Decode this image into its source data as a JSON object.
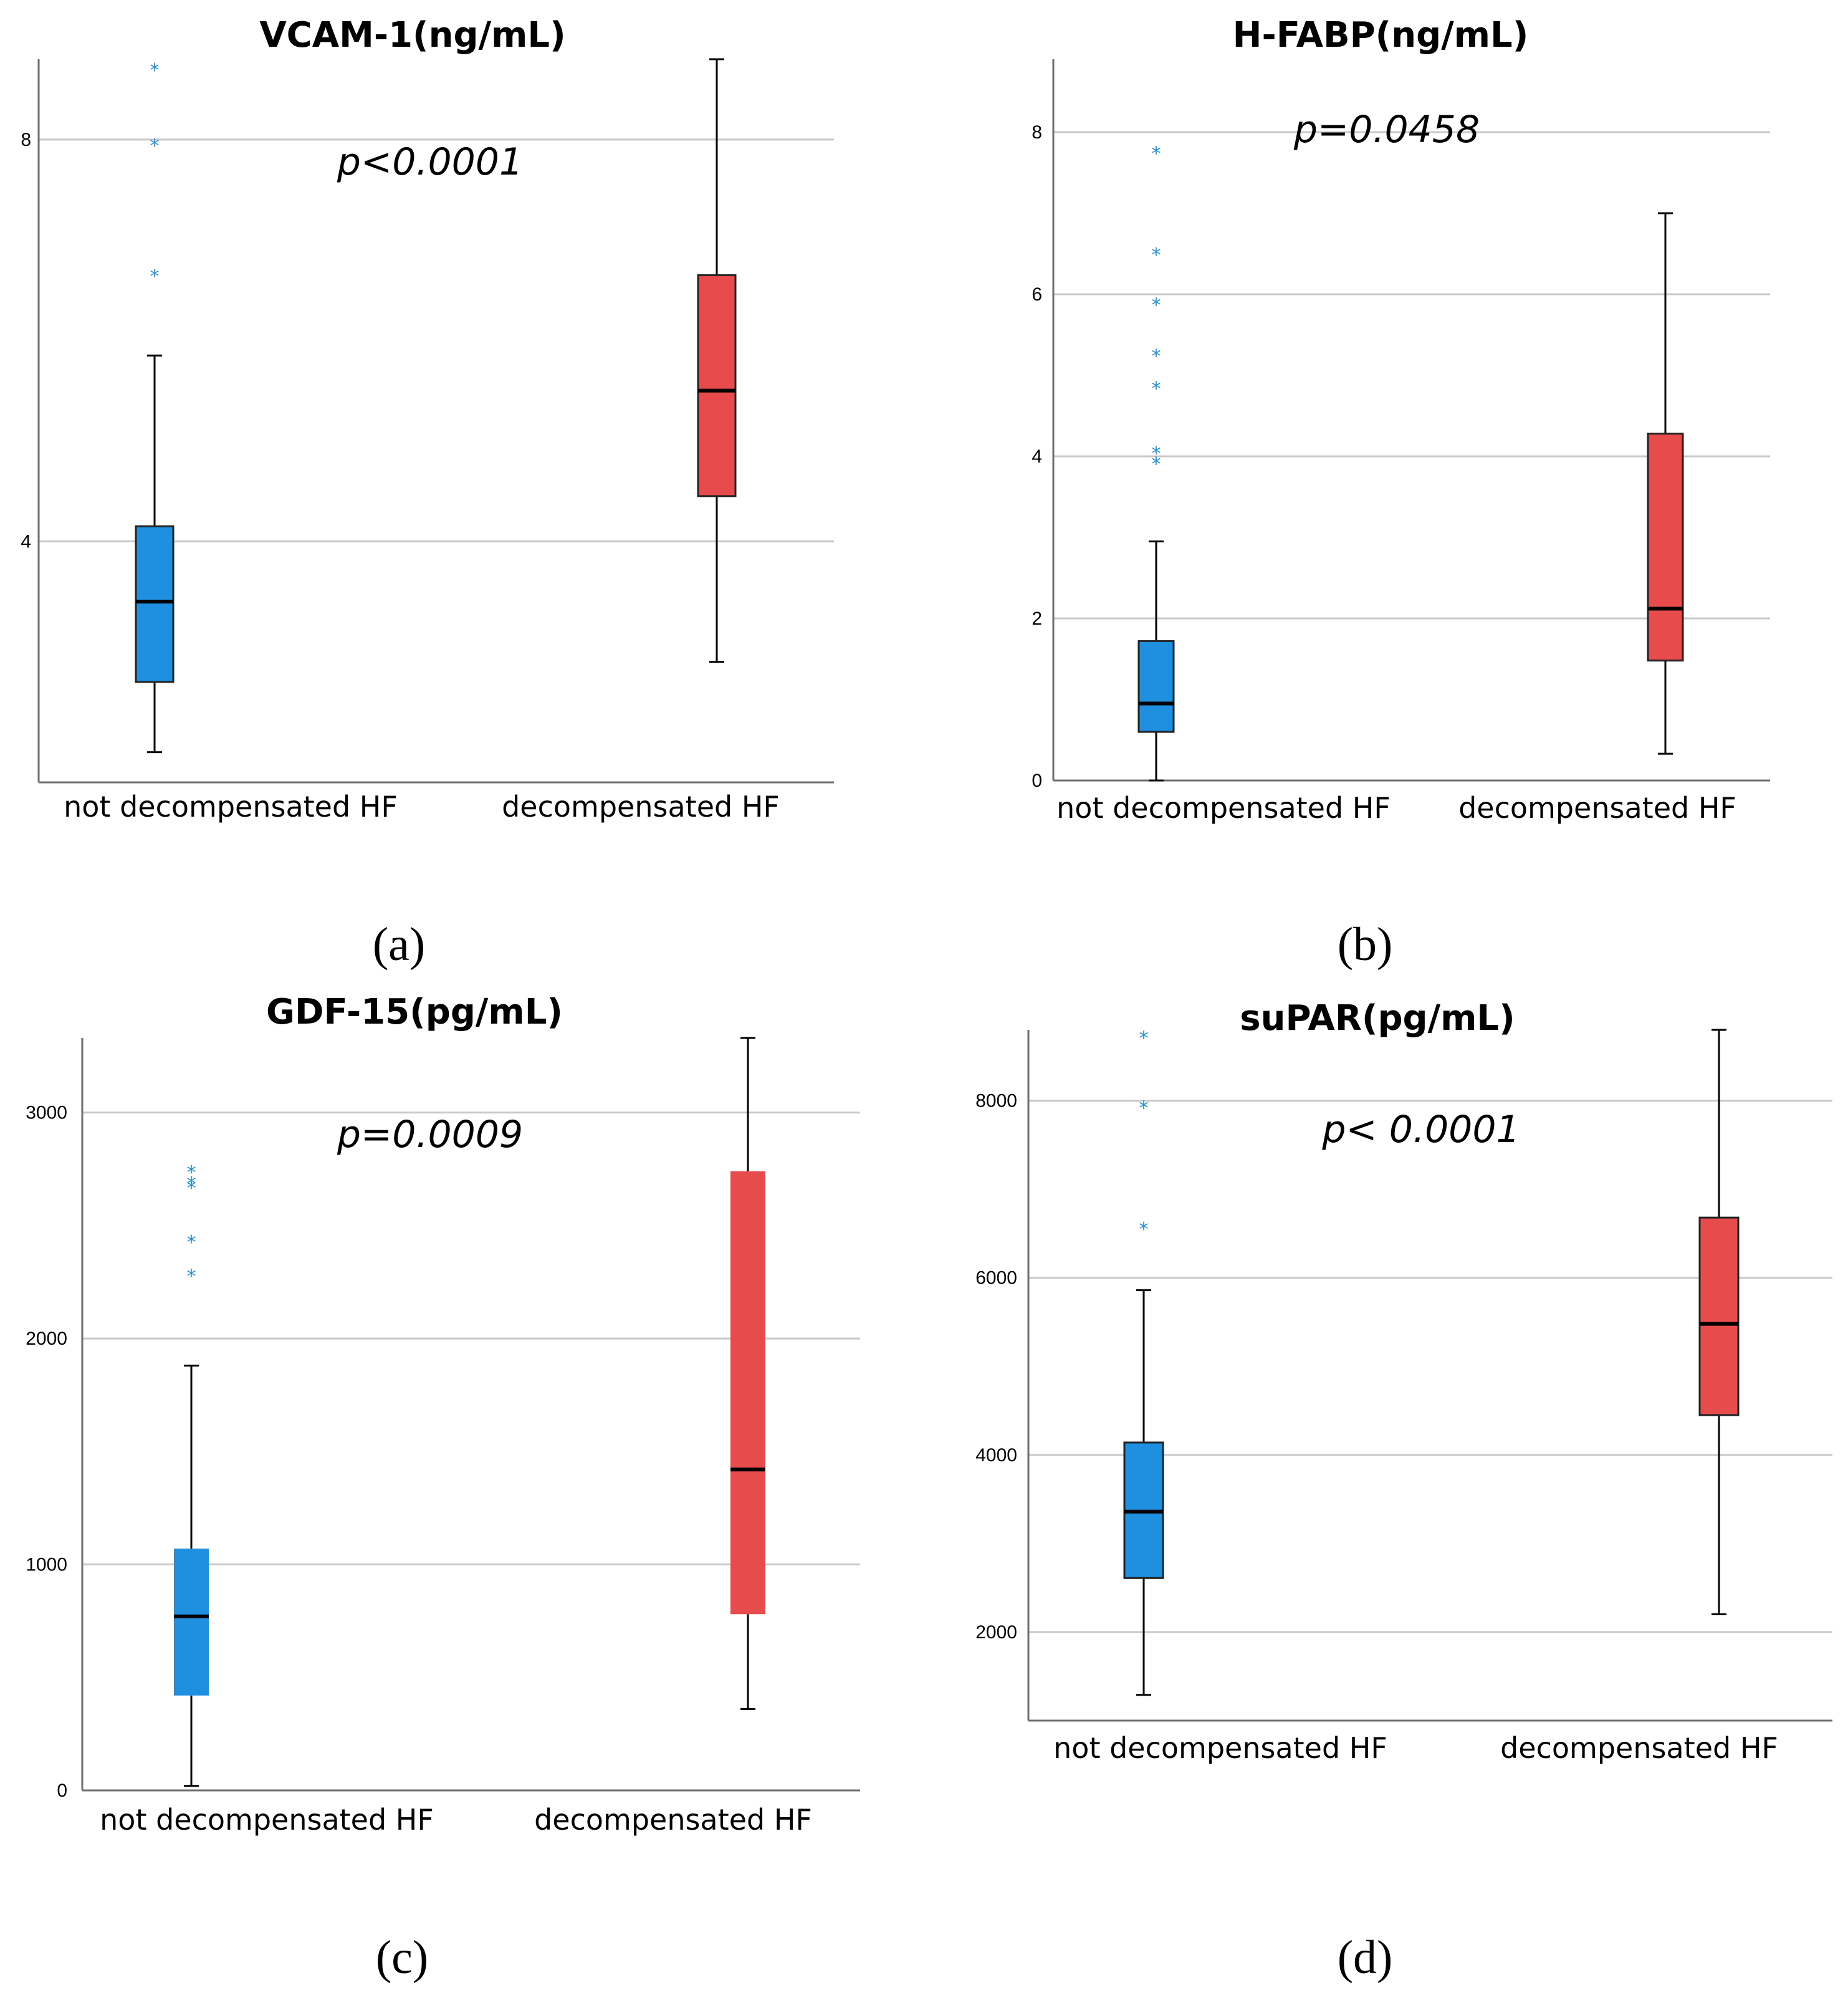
{
  "chart_data": [
    {
      "type": "box",
      "panel_label": "(a)",
      "title": "VCAM-1(ng/mL)",
      "annotation": "p<0.0001",
      "ylim": [
        1.6,
        8.8
      ],
      "yticks": [
        4,
        8
      ],
      "grid": true,
      "categories": [
        "not decompensated HF",
        "decompensated HF"
      ],
      "boxes": [
        {
          "category": "not decompensated HF",
          "color": "#1f8fe0",
          "whisker_low": 1.9,
          "q1": 2.6,
          "median": 3.4,
          "q3": 4.15,
          "whisker_high": 5.85,
          "outliers": [
            6.65,
            7.95,
            8.7
          ]
        },
        {
          "category": "decompensated HF",
          "color": "#e84b4b",
          "whisker_low": 2.8,
          "q1": 4.45,
          "median": 5.5,
          "q3": 6.65,
          "whisker_high": 8.8,
          "outliers": []
        }
      ]
    },
    {
      "type": "box",
      "panel_label": "(b)",
      "title": "H-FABP(ng/mL)",
      "annotation": "p=0.0458",
      "ylim": [
        0,
        8.9
      ],
      "yticks": [
        0,
        2,
        4,
        6,
        8
      ],
      "grid": true,
      "categories": [
        "not decompensated HF",
        "decompensated HF"
      ],
      "boxes": [
        {
          "category": "not decompensated HF",
          "color": "#1f8fe0",
          "whisker_low": 0.0,
          "q1": 0.6,
          "median": 0.95,
          "q3": 1.72,
          "whisker_high": 2.95,
          "outliers": [
            3.92,
            4.05,
            4.85,
            5.25,
            5.88,
            6.5,
            7.75
          ]
        },
        {
          "category": "decompensated HF",
          "color": "#e84b4b",
          "whisker_low": 0.33,
          "q1": 1.48,
          "median": 2.12,
          "q3": 4.28,
          "whisker_high": 7.0,
          "outliers": []
        }
      ]
    },
    {
      "type": "box",
      "panel_label": "(c)",
      "title": "GDF-15(pg/mL)",
      "annotation": "p=0.0009",
      "ylim": [
        0,
        3330
      ],
      "yticks": [
        0,
        1000,
        2000,
        3000
      ],
      "grid": true,
      "categories": [
        "not decompensated HF",
        "decompensated HF"
      ],
      "boxes": [
        {
          "category": "not decompensated HF",
          "color": "#1f8fe0",
          "whisker_low": 20,
          "q1": 420,
          "median": 770,
          "q3": 1070,
          "whisker_high": 1880,
          "outliers": [
            2280,
            2430,
            2670,
            2690,
            2740
          ]
        },
        {
          "category": "decompensated HF",
          "color": "#e84b4b",
          "whisker_low": 360,
          "q1": 780,
          "median": 1420,
          "q3": 2740,
          "whisker_high": 3330,
          "outliers": []
        }
      ]
    },
    {
      "type": "box",
      "panel_label": "(d)",
      "title": "suPAR(pg/mL)",
      "annotation": "p< 0.0001",
      "ylim": [
        1000,
        8800
      ],
      "yticks": [
        2000,
        4000,
        6000,
        8000
      ],
      "grid": true,
      "categories": [
        "not decompensated HF",
        "decompensated HF"
      ],
      "boxes": [
        {
          "category": "not decompensated HF",
          "color": "#1f8fe0",
          "whisker_low": 1290,
          "q1": 2610,
          "median": 3360,
          "q3": 4140,
          "whisker_high": 5860,
          "outliers": [
            6560,
            7930,
            8720
          ]
        },
        {
          "category": "decompensated HF",
          "color": "#e84b4b",
          "whisker_low": 2200,
          "q1": 4450,
          "median": 5480,
          "q3": 6680,
          "whisker_high": 8800,
          "outliers": []
        }
      ]
    }
  ]
}
